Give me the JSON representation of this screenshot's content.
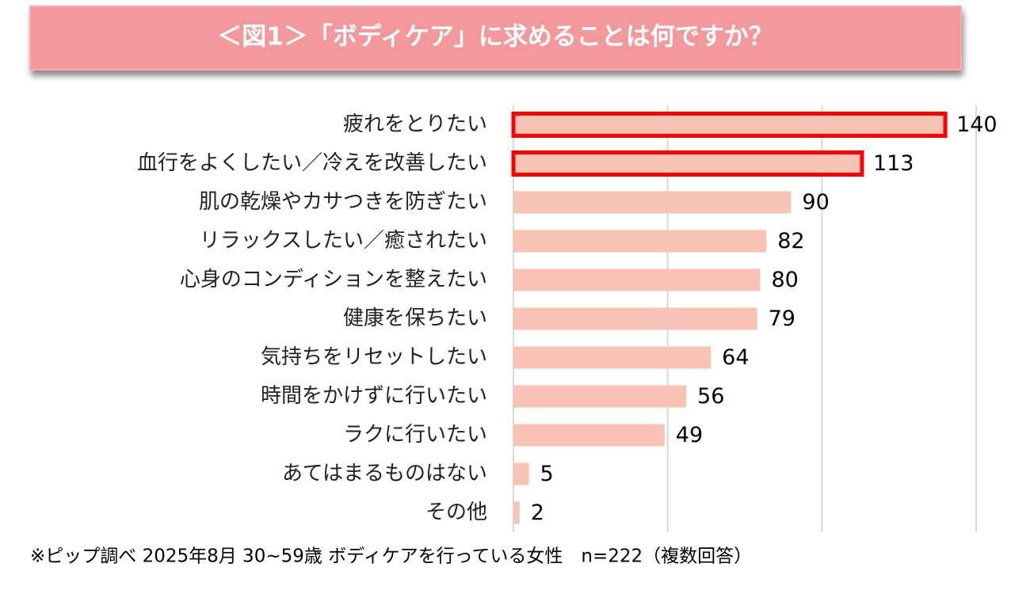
{
  "chart_data": {
    "type": "barh",
    "title": "＜図1＞「ボディケア」に求めることは何ですか？",
    "categories": [
      "疲れをとりたい",
      "血行をよくしたい／冷えを改善したい",
      "肌の乾燥やカサつきを防ぎたい",
      "リラックスしたい／癒されたい",
      "心身のコンディションを整えたい",
      "健康を保ちたい",
      "気持ちをリセットしたい",
      "時間をかけずに行いたい",
      "ラクに行いたい",
      "あてはまるものはない",
      "その他"
    ],
    "values": [
      140,
      113,
      90,
      82,
      80,
      79,
      64,
      56,
      49,
      5,
      2
    ],
    "color": "#f8c3b4",
    "highlighted": [
      true,
      true,
      false,
      false,
      false,
      false,
      false,
      false,
      false,
      false,
      false
    ],
    "highlight_color": "#ff0000",
    "xlim": [
      0,
      150
    ],
    "xticks": [
      0,
      50,
      100,
      150
    ],
    "grid": true,
    "note": "※ピップ調べ 2025年8月 30~59歳 ボディケアを行っている女性　n=222（複数回答）"
  }
}
